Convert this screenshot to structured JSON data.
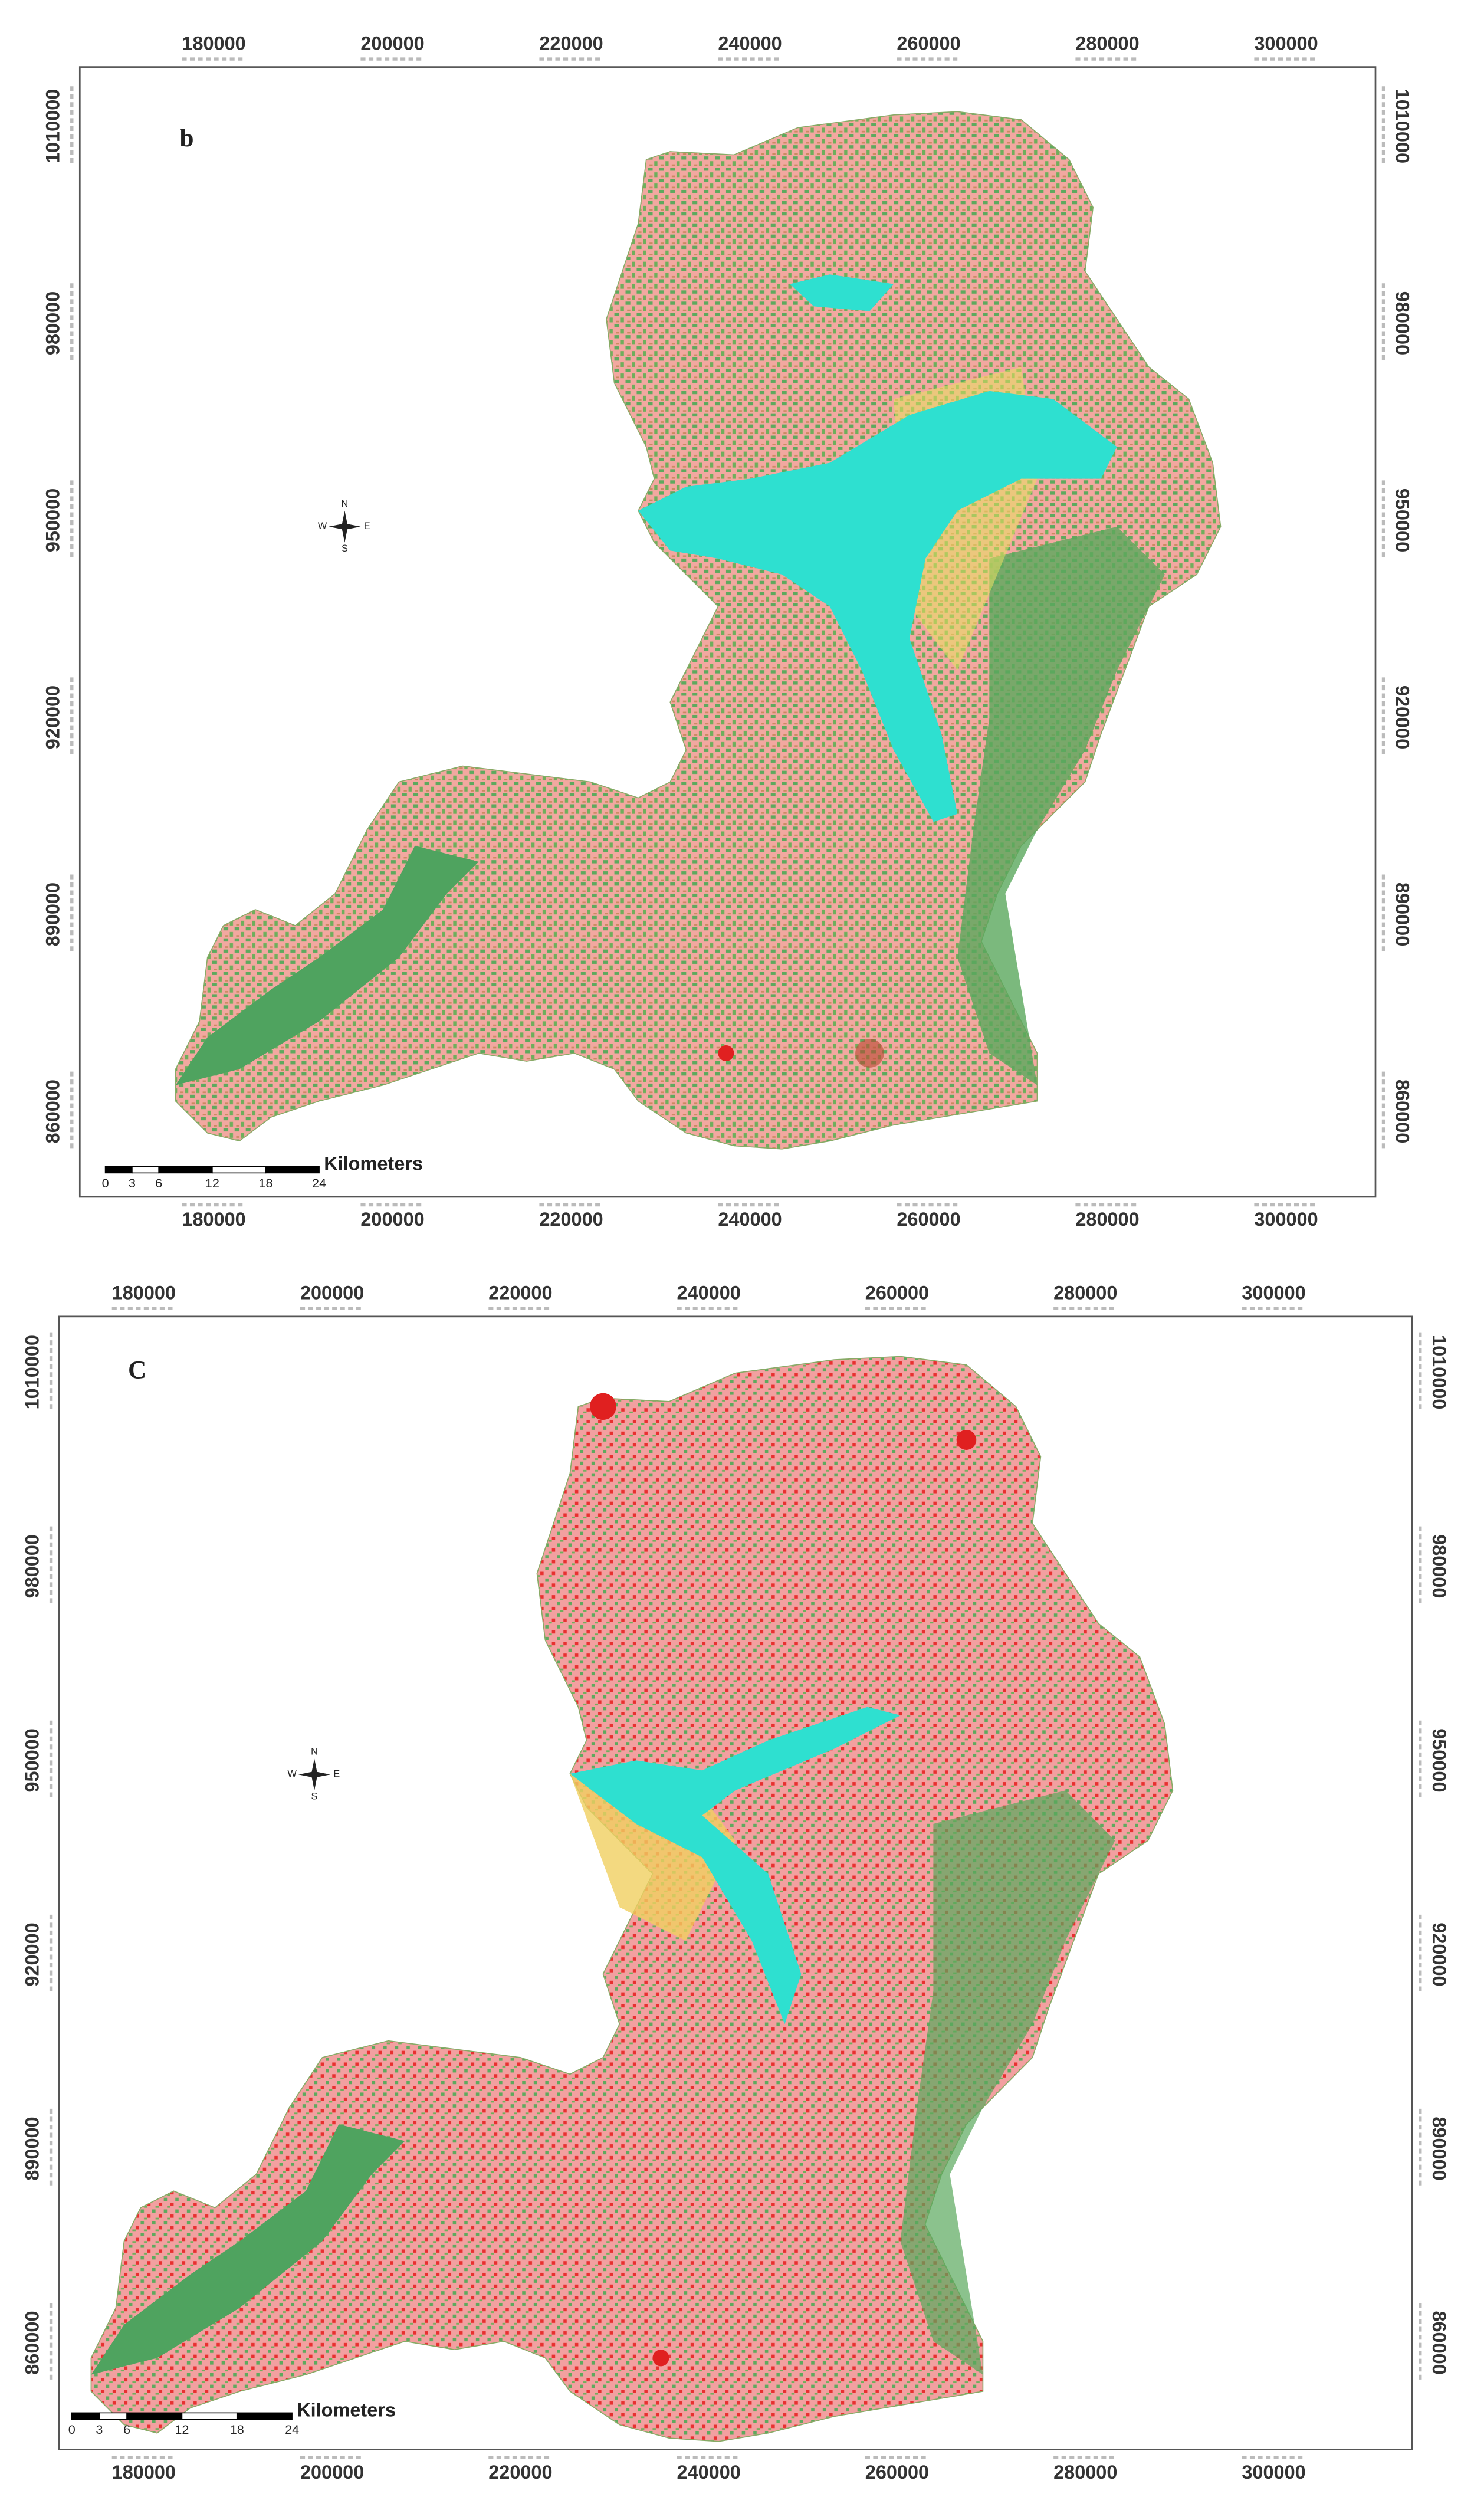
{
  "maps": [
    {
      "label": "b",
      "xlim": [
        165000,
        310000
      ],
      "ylim": [
        847000,
        1019000
      ],
      "xticks": [
        180000,
        200000,
        220000,
        240000,
        260000,
        280000,
        300000
      ],
      "yticks": [
        860000,
        890000,
        920000,
        950000,
        980000,
        1010000
      ],
      "scale_bar": {
        "unit": "Kilometers",
        "ticks": [
          0,
          3,
          6,
          12,
          18,
          24
        ]
      },
      "north_arrow": {
        "n": "N",
        "s": "S",
        "e": "E",
        "w": "W"
      }
    },
    {
      "label": "C",
      "xlim": [
        171000,
        314700
      ],
      "ylim": [
        843500,
        1018600
      ],
      "xticks": [
        180000,
        200000,
        220000,
        240000,
        260000,
        280000,
        300000
      ],
      "yticks": [
        860000,
        890000,
        920000,
        950000,
        980000,
        1010000
      ],
      "scale_bar": {
        "unit": "Kilometers",
        "ticks": [
          0,
          3,
          6,
          12,
          18,
          24
        ]
      },
      "north_arrow": {
        "n": "N",
        "s": "S",
        "e": "E",
        "w": "W"
      }
    }
  ]
}
